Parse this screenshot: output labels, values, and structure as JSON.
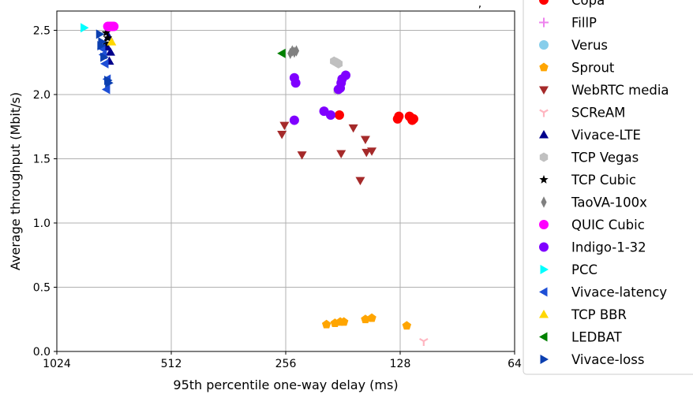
{
  "chart_data": {
    "type": "scatter",
    "title_fragment": ",",
    "xlabel": "95th percentile one-way delay (ms)",
    "ylabel": "Average throughput (Mbit/s)",
    "x_scale": "log2-reversed",
    "xlim": [
      1024,
      64
    ],
    "ylim": [
      0,
      2.65
    ],
    "x_ticks": [
      "1024",
      "512",
      "256",
      "128",
      "64"
    ],
    "y_ticks": [
      "0.0",
      "0.5",
      "1.0",
      "1.5",
      "2.0",
      "2.5"
    ],
    "grid": true,
    "legend_placement": "right",
    "series": [
      {
        "name": "Copa",
        "marker": "circle",
        "color": "#ff0000",
        "points": [
          [
            185,
            1.84
          ],
          [
            130,
            1.81
          ],
          [
            129,
            1.83
          ],
          [
            121,
            1.83
          ],
          [
            120,
            1.82
          ],
          [
            119,
            1.8
          ],
          [
            118,
            1.81
          ]
        ]
      },
      {
        "name": "FillP",
        "marker": "plus",
        "color": "#ee82ee",
        "points": []
      },
      {
        "name": "Verus",
        "marker": "circle",
        "color": "#87ceeb",
        "points": []
      },
      {
        "name": "Sprout",
        "marker": "pentagon",
        "color": "#ffa500",
        "points": [
          [
            200,
            0.21
          ],
          [
            190,
            0.22
          ],
          [
            184,
            0.23
          ],
          [
            180,
            0.23
          ],
          [
            158,
            0.25
          ],
          [
            152,
            0.26
          ],
          [
            123,
            0.2
          ]
        ]
      },
      {
        "name": "WebRTC media",
        "marker": "triangle-down",
        "color": "#a52a2a",
        "points": [
          [
            262,
            1.69
          ],
          [
            258,
            1.76
          ],
          [
            232,
            1.53
          ],
          [
            183,
            1.54
          ],
          [
            170,
            1.74
          ],
          [
            163,
            1.33
          ],
          [
            158,
            1.65
          ],
          [
            157,
            1.55
          ],
          [
            152,
            1.56
          ]
        ]
      },
      {
        "name": "SCReAM",
        "marker": "tri-down",
        "color": "#ffb6c1",
        "points": [
          [
            111,
            0.08
          ]
        ]
      },
      {
        "name": "Vivace-LTE",
        "marker": "triangle-up",
        "color": "#00008b",
        "points": [
          [
            755,
            2.37
          ],
          [
            748,
            2.45
          ],
          [
            740,
            2.33
          ],
          [
            745,
            2.26
          ]
        ]
      },
      {
        "name": "TCP Vegas",
        "marker": "hexagon",
        "color": "#c0c0c0",
        "points": [
          [
            191,
            2.26
          ],
          [
            188,
            2.25
          ],
          [
            186,
            2.24
          ],
          [
            187,
            2.03
          ]
        ]
      },
      {
        "name": "TCP Cubic",
        "marker": "star",
        "color": "#000000",
        "points": [
          [
            760,
            2.48
          ],
          [
            752,
            2.44
          ],
          [
            764,
            2.4
          ]
        ]
      },
      {
        "name": "TaoVA-100x",
        "marker": "thin-diamond",
        "color": "#808080",
        "points": [
          [
            249,
            2.32
          ],
          [
            246,
            2.34
          ],
          [
            243,
            2.33
          ],
          [
            240,
            2.34
          ]
        ]
      },
      {
        "name": "QUIC Cubic",
        "marker": "circle",
        "color": "#ff00ff",
        "points": [
          [
            752,
            2.53
          ],
          [
            744,
            2.53
          ],
          [
            737,
            2.53
          ],
          [
            731,
            2.53
          ],
          [
            725,
            2.53
          ]
        ]
      },
      {
        "name": "Indigo-1-32",
        "marker": "circle",
        "color": "#7f00ff",
        "points": [
          [
            243,
            2.13
          ],
          [
            241,
            2.09
          ],
          [
            243,
            1.8
          ],
          [
            203,
            1.87
          ],
          [
            195,
            1.84
          ],
          [
            186,
            2.04
          ],
          [
            184,
            2.05
          ],
          [
            183,
            2.09
          ],
          [
            182,
            2.12
          ],
          [
            178,
            2.15
          ]
        ]
      },
      {
        "name": "PCC",
        "marker": "triangle-right",
        "color": "#00ffff",
        "points": [
          [
            868,
            2.52
          ]
        ]
      },
      {
        "name": "Vivace-latency",
        "marker": "triangle-left",
        "color": "#1e4fd6",
        "points": [
          [
            780,
            2.36
          ],
          [
            773,
            2.31
          ],
          [
            765,
            2.24
          ],
          [
            755,
            2.12
          ],
          [
            758,
            2.04
          ]
        ]
      },
      {
        "name": "TCP BBR",
        "marker": "triangle-up",
        "color": "#ffd700",
        "points": [
          [
            735,
            2.41
          ]
        ]
      },
      {
        "name": "LEDBAT",
        "marker": "triangle-left",
        "color": "#008000",
        "points": [
          [
            262,
            2.32
          ]
        ]
      },
      {
        "name": "Vivace-loss",
        "marker": "triangle-right",
        "color": "#0b3fb0",
        "points": [
          [
            790,
            2.47
          ],
          [
            780,
            2.41
          ],
          [
            784,
            2.38
          ],
          [
            770,
            2.29
          ],
          [
            752,
            2.11
          ],
          [
            748,
            2.09
          ]
        ]
      }
    ]
  }
}
